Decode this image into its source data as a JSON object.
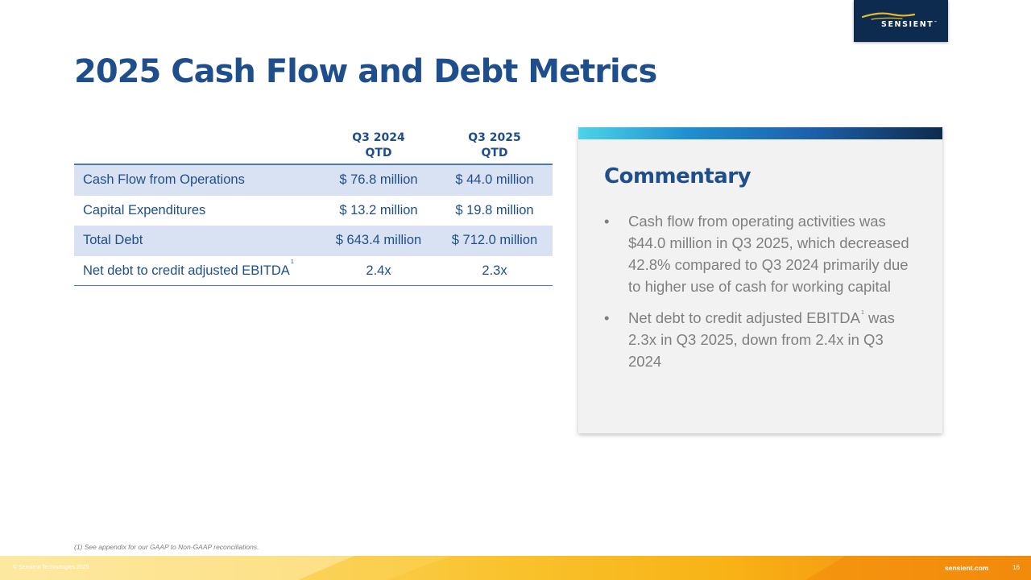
{
  "logo": {
    "brand": "SENSIENT",
    "trademark": "™"
  },
  "title": "2025 Cash Flow and Debt Metrics",
  "table": {
    "columns": [
      {
        "line1": "Q3 2024",
        "line2": "QTD"
      },
      {
        "line1": "Q3 2025",
        "line2": "QTD"
      }
    ],
    "rows": [
      {
        "label": "Cash Flow from Operations",
        "q3_2024": "$ 76.8 million",
        "q3_2025": "$ 44.0 million"
      },
      {
        "label": "Capital Expenditures",
        "q3_2024": "$ 13.2 million",
        "q3_2025": "$ 19.8 million"
      },
      {
        "label": "Total Debt",
        "q3_2024": "$ 643.4 million",
        "q3_2025": "$ 712.0 million"
      },
      {
        "label": "Net debt to credit adjusted EBITDA",
        "footnote_mark": "1",
        "q3_2024": "2.4x",
        "q3_2025": "2.3x"
      }
    ]
  },
  "commentary": {
    "heading": "Commentary",
    "bullets": [
      {
        "text": "Cash flow from operating activities was $44.0 million in Q3 2025, which decreased 42.8% compared to Q3 2024 primarily due to higher use of cash for working capital"
      },
      {
        "text_before": "Net debt to credit adjusted EBITDA",
        "footnote_mark": "1",
        "text_after": " was 2.3x in Q3 2025, down from 2.4x in Q3 2024"
      }
    ]
  },
  "footnote": "(1) See appendix for our GAAP to Non-GAAP reconciliations.",
  "footer": {
    "copyright": "© Sensient Technologies 2025",
    "website": "sensient.com",
    "page_number": "16"
  },
  "colors": {
    "primary_blue": "#1f4e8c",
    "row_shade": "#d9e2f3",
    "logo_navy": "#0d2b4e",
    "logo_gold": "#e8b92a",
    "commentary_bg": "#f2f2f2",
    "footer_gold": "#f9c22c",
    "footer_orange": "#f28a0c"
  }
}
